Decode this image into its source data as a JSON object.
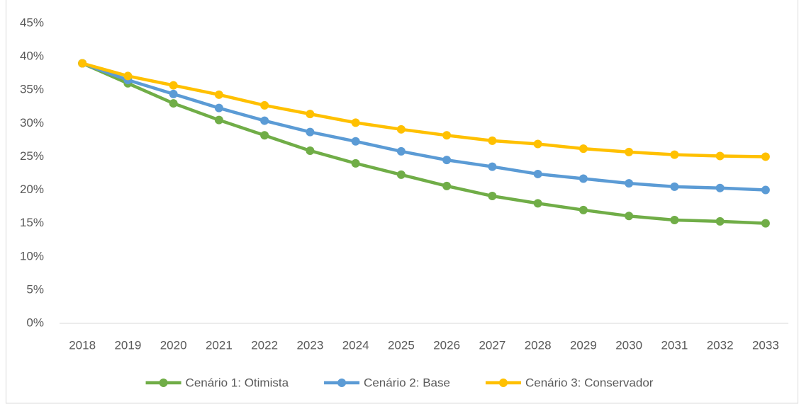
{
  "chart_data": {
    "type": "line",
    "categories": [
      "2018",
      "2019",
      "2020",
      "2021",
      "2022",
      "2023",
      "2024",
      "2025",
      "2026",
      "2027",
      "2028",
      "2029",
      "2030",
      "2031",
      "2032",
      "2033"
    ],
    "series": [
      {
        "name": "Cenário 1: Otimista",
        "color": "#70ad47",
        "values": [
          39,
          36,
          33,
          30.5,
          28.2,
          25.9,
          24,
          22.3,
          20.6,
          19.1,
          18,
          17,
          16.1,
          15.5,
          15.3,
          15
        ]
      },
      {
        "name": "Cenário 2: Base",
        "color": "#5b9bd5",
        "values": [
          39,
          36.5,
          34.4,
          32.3,
          30.4,
          28.7,
          27.3,
          25.8,
          24.5,
          23.5,
          22.4,
          21.7,
          21,
          20.5,
          20.3,
          20
        ]
      },
      {
        "name": "Cenário 3: Conservador",
        "color": "#ffc000",
        "values": [
          39,
          37.1,
          35.7,
          34.3,
          32.7,
          31.4,
          30.1,
          29.1,
          28.2,
          27.4,
          26.9,
          26.2,
          25.7,
          25.3,
          25.1,
          25
        ]
      }
    ],
    "ylim": [
      0,
      45
    ],
    "yticks": [
      {
        "value": 0,
        "label": "0%"
      },
      {
        "value": 5,
        "label": "5%"
      },
      {
        "value": 10,
        "label": "10%"
      },
      {
        "value": 15,
        "label": "15%"
      },
      {
        "value": 20,
        "label": "20%"
      },
      {
        "value": 25,
        "label": "25%"
      },
      {
        "value": 30,
        "label": "30%"
      },
      {
        "value": 35,
        "label": "35%"
      },
      {
        "value": 40,
        "label": "40%"
      },
      {
        "value": 45,
        "label": "45%"
      }
    ],
    "grid": false,
    "legend": "bottom"
  }
}
